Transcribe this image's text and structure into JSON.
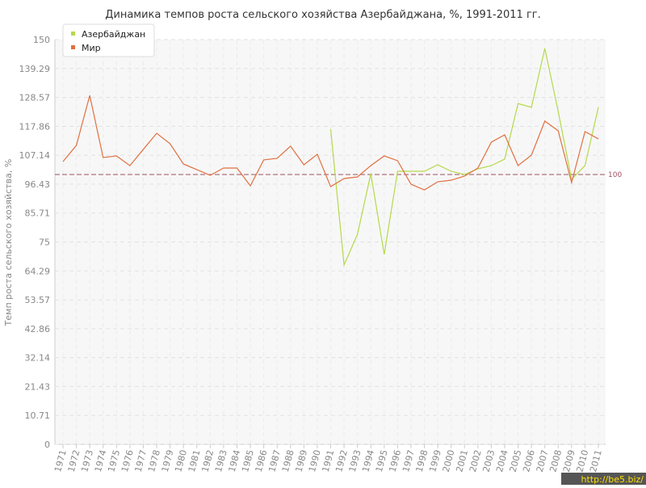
{
  "chart_data": {
    "type": "line",
    "title": "Динамика темпов роста сельского хозяйства Азербайджана, %, 1991-2011 гг.",
    "y_label": "Темп роста сельского хозяйства, %",
    "categories": [
      "1971",
      "1972",
      "1973",
      "1974",
      "1975",
      "1976",
      "1977",
      "1978",
      "1979",
      "1980",
      "1981",
      "1982",
      "1983",
      "1984",
      "1985",
      "1986",
      "1987",
      "1988",
      "1989",
      "1990",
      "1991",
      "1992",
      "1993",
      "1994",
      "1995",
      "1996",
      "1997",
      "1998",
      "1999",
      "2000",
      "2001",
      "2002",
      "2003",
      "2004",
      "2005",
      "2006",
      "2007",
      "2008",
      "2009",
      "2010",
      "2011"
    ],
    "series": [
      {
        "name": "Азербайджан",
        "color": "#b5d94a",
        "values": [
          null,
          null,
          null,
          null,
          null,
          null,
          null,
          null,
          null,
          null,
          null,
          null,
          null,
          null,
          null,
          null,
          null,
          null,
          null,
          null,
          116.8,
          66.5,
          77.8,
          100.3,
          70.4,
          101.2,
          101.2,
          101.2,
          103.6,
          101.2,
          100,
          102.1,
          103.3,
          105.7,
          126.3,
          124.9,
          146.7,
          123.4,
          98.2,
          103.3,
          124.9
        ]
      },
      {
        "name": "Мир",
        "color": "#e07040",
        "values": [
          104.8,
          110.8,
          129.3,
          106.3,
          106.9,
          103.3,
          109.3,
          115.3,
          111.4,
          103.9,
          101.8,
          99.7,
          102.4,
          102.4,
          95.8,
          105.4,
          106,
          110.5,
          103.6,
          107.5,
          95.5,
          98.5,
          99.1,
          103.3,
          106.9,
          105.1,
          96.4,
          94.3,
          97.3,
          97.9,
          99.4,
          102.4,
          112,
          114.7,
          103.3,
          107.2,
          119.8,
          116.2,
          97,
          115.9,
          113.2
        ]
      }
    ],
    "ylim": [
      0,
      150
    ],
    "yticks": [
      0,
      10.71,
      21.43,
      32.14,
      42.86,
      53.57,
      64.29,
      75,
      85.71,
      96.43,
      107.14,
      117.86,
      128.57,
      139.29,
      150
    ],
    "grid": true,
    "reference_line": 100,
    "reference_color": "#a05060",
    "legend_position": "top-left",
    "watermark": "http://be5.biz/"
  }
}
